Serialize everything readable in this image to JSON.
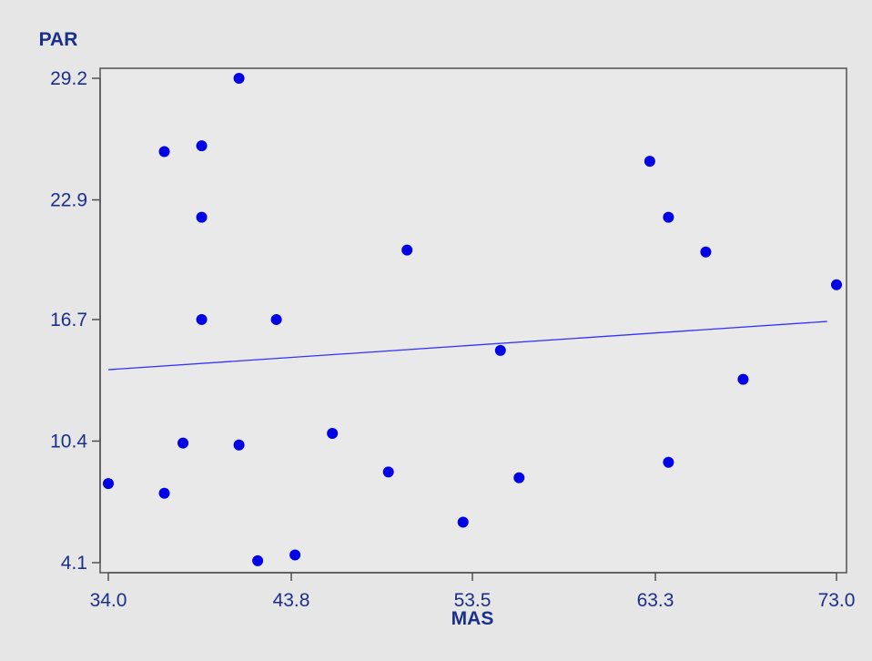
{
  "chart_data": {
    "type": "scatter",
    "xlabel": "MAS",
    "ylabel": "PAR",
    "xlim": [
      34.0,
      73.0
    ],
    "ylim": [
      4.1,
      29.2
    ],
    "xticks": [
      "34.0",
      "43.8",
      "53.5",
      "63.3",
      "73.0"
    ],
    "yticks": [
      "4.1",
      "10.4",
      "16.7",
      "22.9",
      "29.2"
    ],
    "xtick_values": [
      34.0,
      43.8,
      53.5,
      63.3,
      73.0
    ],
    "ytick_values": [
      4.1,
      10.4,
      16.7,
      22.9,
      29.2
    ],
    "grid": false,
    "points": [
      {
        "x": 34.0,
        "y": 8.2
      },
      {
        "x": 37.0,
        "y": 25.4
      },
      {
        "x": 37.0,
        "y": 7.7
      },
      {
        "x": 38.0,
        "y": 10.3
      },
      {
        "x": 39.0,
        "y": 25.7
      },
      {
        "x": 39.0,
        "y": 22.0
      },
      {
        "x": 39.0,
        "y": 16.7
      },
      {
        "x": 41.0,
        "y": 29.2
      },
      {
        "x": 41.0,
        "y": 10.2
      },
      {
        "x": 42.0,
        "y": 4.2
      },
      {
        "x": 43.0,
        "y": 16.7
      },
      {
        "x": 44.0,
        "y": 4.5
      },
      {
        "x": 46.0,
        "y": 10.8
      },
      {
        "x": 49.0,
        "y": 8.8
      },
      {
        "x": 50.0,
        "y": 20.3
      },
      {
        "x": 53.0,
        "y": 6.2
      },
      {
        "x": 55.0,
        "y": 15.1
      },
      {
        "x": 56.0,
        "y": 8.5
      },
      {
        "x": 63.0,
        "y": 24.9
      },
      {
        "x": 64.0,
        "y": 22.0
      },
      {
        "x": 64.0,
        "y": 9.3
      },
      {
        "x": 66.0,
        "y": 20.2
      },
      {
        "x": 68.0,
        "y": 13.6
      },
      {
        "x": 73.0,
        "y": 18.5
      }
    ],
    "trendline": {
      "x": [
        34.0,
        72.5
      ],
      "y": [
        14.1,
        16.6
      ]
    },
    "colors": {
      "frame_bg": "#e6e6e6",
      "plot_bg": "#e9e9e9",
      "axis": "#505050",
      "text": "#1a2f8c",
      "point": "#0000e6",
      "trendline": "#3333ff"
    }
  }
}
